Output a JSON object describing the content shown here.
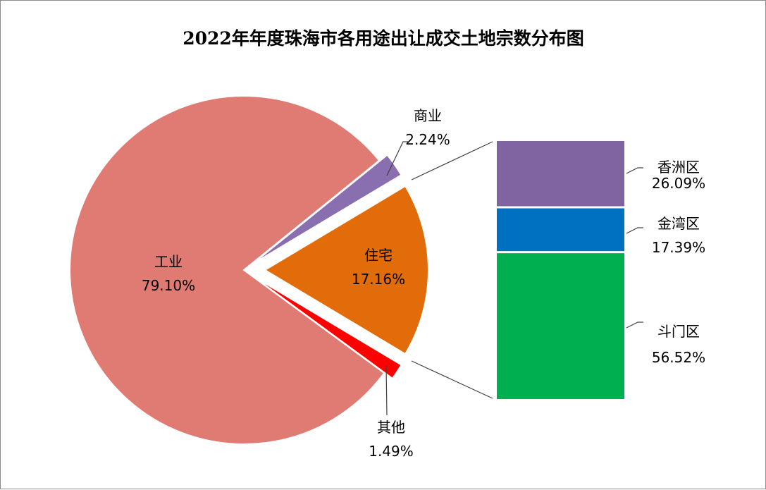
{
  "chart_data": {
    "type": "pie",
    "title": "2022年年度珠海市各用途出让成交土地宗数分布图",
    "slices": [
      {
        "name": "工业",
        "value": 79.1,
        "label": "79.10%",
        "color": "#E07B74"
      },
      {
        "name": "商业",
        "value": 2.24,
        "label": "2.24%",
        "color": "#8A6FB0"
      },
      {
        "name": "住宅",
        "value": 17.16,
        "label": "17.16%",
        "color": "#E36C0A"
      },
      {
        "name": "其他",
        "value": 1.49,
        "label": "1.49%",
        "color": "#FF0000"
      }
    ],
    "breakdown": {
      "of": "住宅",
      "type": "stacked-bar",
      "segments": [
        {
          "name": "香洲区",
          "value": 26.09,
          "label": "26.09%",
          "color": "#8064A2"
        },
        {
          "name": "金湾区",
          "value": 17.39,
          "label": "17.39%",
          "color": "#0070C0"
        },
        {
          "name": "斗门区",
          "value": 56.52,
          "label": "56.52%",
          "color": "#00B050"
        }
      ]
    }
  }
}
